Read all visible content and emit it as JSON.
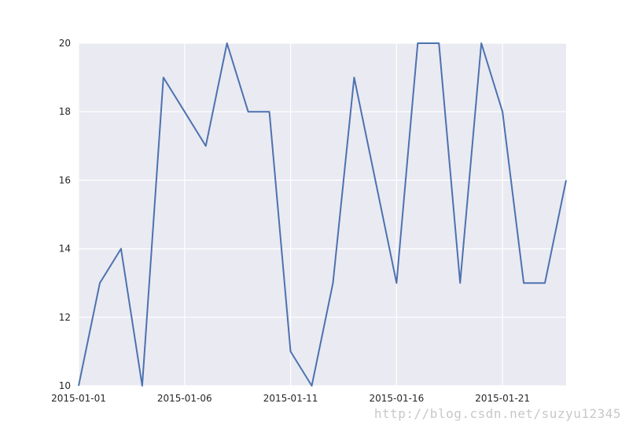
{
  "chart_data": {
    "type": "line",
    "title": "",
    "xlabel": "",
    "ylabel": "",
    "x": [
      "2015-01-01",
      "2015-01-02",
      "2015-01-03",
      "2015-01-04",
      "2015-01-05",
      "2015-01-06",
      "2015-01-07",
      "2015-01-08",
      "2015-01-09",
      "2015-01-10",
      "2015-01-11",
      "2015-01-12",
      "2015-01-13",
      "2015-01-14",
      "2015-01-15",
      "2015-01-16",
      "2015-01-17",
      "2015-01-18",
      "2015-01-19",
      "2015-01-20",
      "2015-01-21",
      "2015-01-22",
      "2015-01-23",
      "2015-01-24"
    ],
    "series": [
      {
        "values": [
          10,
          13,
          14,
          10,
          19,
          18,
          17,
          20,
          18,
          18,
          11,
          10,
          13,
          19,
          16,
          13,
          20,
          20,
          13,
          20,
          18,
          13,
          13,
          16
        ]
      }
    ],
    "xlim": [
      "2015-01-01",
      "2015-01-24"
    ],
    "ylim": [
      10,
      20
    ],
    "x_ticks": [
      "2015-01-01",
      "2015-01-06",
      "2015-01-11",
      "2015-01-16",
      "2015-01-21"
    ],
    "y_ticks": [
      10,
      12,
      14,
      16,
      18,
      20
    ],
    "grid": true,
    "legend": false,
    "colors": {
      "line": "#4c72b0",
      "plot_background": "#eaeaf2",
      "grid": "#ffffff"
    }
  },
  "watermark": "http://blog.csdn.net/suzyu12345"
}
